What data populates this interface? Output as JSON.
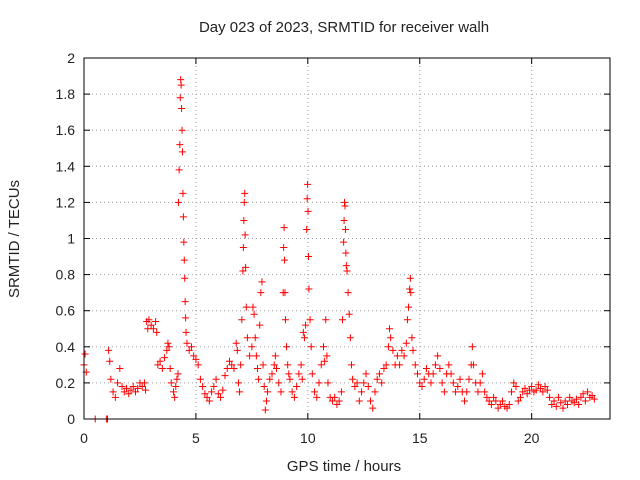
{
  "chart_data": {
    "type": "scatter",
    "title": "Day 023 of 2023, SRMTID for receiver walh",
    "xlabel": "GPS time / hours",
    "ylabel": "SRMTID / TECUs",
    "xlim": [
      0,
      23.5
    ],
    "ylim": [
      0,
      2
    ],
    "xticks": [
      0,
      5,
      10,
      15,
      20
    ],
    "yticks": [
      0,
      0.2,
      0.4,
      0.6,
      0.8,
      1,
      1.2,
      1.4,
      1.6,
      1.8,
      2
    ],
    "xtick_labels": [
      "0",
      "5",
      "10",
      "15",
      "20"
    ],
    "ytick_labels": [
      "0",
      "0.2",
      "0.4",
      "0.6",
      "0.8",
      "1",
      "1.2",
      "1.4",
      "1.6",
      "1.8",
      "2"
    ],
    "grid": true,
    "marker": "+",
    "color": "#ff0000",
    "series": [
      {
        "name": "SRMTID",
        "points": [
          [
            0.0,
            0.3
          ],
          [
            0.05,
            0.36
          ],
          [
            0.1,
            0.26
          ],
          [
            0.5,
            0.0
          ],
          [
            1.0,
            0.0
          ],
          [
            1.05,
            0.0
          ],
          [
            1.1,
            0.38
          ],
          [
            1.15,
            0.32
          ],
          [
            1.2,
            0.22
          ],
          [
            1.3,
            0.15
          ],
          [
            1.4,
            0.12
          ],
          [
            1.5,
            0.2
          ],
          [
            1.6,
            0.28
          ],
          [
            1.7,
            0.18
          ],
          [
            1.8,
            0.15
          ],
          [
            1.9,
            0.17
          ],
          [
            2.0,
            0.14
          ],
          [
            2.1,
            0.16
          ],
          [
            2.2,
            0.18
          ],
          [
            2.3,
            0.15
          ],
          [
            2.4,
            0.17
          ],
          [
            2.5,
            0.2
          ],
          [
            2.6,
            0.18
          ],
          [
            2.7,
            0.2
          ],
          [
            2.75,
            0.16
          ],
          [
            2.8,
            0.54
          ],
          [
            2.85,
            0.5
          ],
          [
            2.9,
            0.55
          ],
          [
            3.0,
            0.52
          ],
          [
            3.1,
            0.5
          ],
          [
            3.2,
            0.54
          ],
          [
            3.25,
            0.48
          ],
          [
            3.3,
            0.3
          ],
          [
            3.4,
            0.32
          ],
          [
            3.5,
            0.28
          ],
          [
            3.6,
            0.34
          ],
          [
            3.7,
            0.38
          ],
          [
            3.75,
            0.42
          ],
          [
            3.8,
            0.4
          ],
          [
            3.85,
            0.28
          ],
          [
            3.9,
            0.2
          ],
          [
            4.0,
            0.15
          ],
          [
            4.05,
            0.12
          ],
          [
            4.1,
            0.18
          ],
          [
            4.15,
            0.22
          ],
          [
            4.2,
            0.25
          ],
          [
            4.22,
            1.2
          ],
          [
            4.25,
            1.38
          ],
          [
            4.28,
            1.52
          ],
          [
            4.3,
            1.78
          ],
          [
            4.32,
            1.88
          ],
          [
            4.34,
            1.85
          ],
          [
            4.36,
            1.72
          ],
          [
            4.38,
            1.6
          ],
          [
            4.4,
            1.48
          ],
          [
            4.42,
            1.25
          ],
          [
            4.44,
            1.12
          ],
          [
            4.46,
            0.98
          ],
          [
            4.48,
            0.88
          ],
          [
            4.5,
            0.78
          ],
          [
            4.52,
            0.65
          ],
          [
            4.54,
            0.56
          ],
          [
            4.56,
            0.48
          ],
          [
            4.6,
            0.42
          ],
          [
            4.7,
            0.38
          ],
          [
            4.8,
            0.4
          ],
          [
            4.9,
            0.35
          ],
          [
            5.0,
            0.33
          ],
          [
            5.1,
            0.3
          ],
          [
            5.2,
            0.22
          ],
          [
            5.3,
            0.18
          ],
          [
            5.4,
            0.14
          ],
          [
            5.5,
            0.12
          ],
          [
            5.6,
            0.1
          ],
          [
            5.7,
            0.15
          ],
          [
            5.8,
            0.18
          ],
          [
            5.9,
            0.22
          ],
          [
            6.0,
            0.14
          ],
          [
            6.1,
            0.12
          ],
          [
            6.2,
            0.16
          ],
          [
            6.3,
            0.24
          ],
          [
            6.4,
            0.28
          ],
          [
            6.5,
            0.32
          ],
          [
            6.6,
            0.3
          ],
          [
            6.7,
            0.28
          ],
          [
            6.8,
            0.42
          ],
          [
            6.85,
            0.38
          ],
          [
            6.9,
            0.2
          ],
          [
            6.95,
            0.15
          ],
          [
            7.0,
            0.3
          ],
          [
            7.05,
            0.55
          ],
          [
            7.1,
            0.82
          ],
          [
            7.12,
            0.95
          ],
          [
            7.14,
            1.1
          ],
          [
            7.16,
            1.2
          ],
          [
            7.18,
            1.25
          ],
          [
            7.2,
            1.02
          ],
          [
            7.22,
            0.84
          ],
          [
            7.25,
            0.62
          ],
          [
            7.3,
            0.45
          ],
          [
            7.4,
            0.35
          ],
          [
            7.5,
            0.4
          ],
          [
            7.55,
            0.62
          ],
          [
            7.6,
            0.58
          ],
          [
            7.65,
            0.45
          ],
          [
            7.7,
            0.35
          ],
          [
            7.75,
            0.28
          ],
          [
            7.8,
            0.22
          ],
          [
            7.85,
            0.52
          ],
          [
            7.9,
            0.7
          ],
          [
            7.95,
            0.76
          ],
          [
            8.0,
            0.3
          ],
          [
            8.05,
            0.18
          ],
          [
            8.1,
            0.05
          ],
          [
            8.15,
            0.1
          ],
          [
            8.2,
            0.15
          ],
          [
            8.3,
            0.22
          ],
          [
            8.4,
            0.25
          ],
          [
            8.5,
            0.3
          ],
          [
            8.55,
            0.35
          ],
          [
            8.6,
            0.28
          ],
          [
            8.7,
            0.2
          ],
          [
            8.8,
            0.15
          ],
          [
            8.9,
            0.7
          ],
          [
            8.92,
            0.95
          ],
          [
            8.94,
            1.06
          ],
          [
            8.96,
            0.88
          ],
          [
            8.98,
            0.7
          ],
          [
            9.0,
            0.55
          ],
          [
            9.05,
            0.4
          ],
          [
            9.1,
            0.3
          ],
          [
            9.15,
            0.25
          ],
          [
            9.2,
            0.22
          ],
          [
            9.3,
            0.15
          ],
          [
            9.4,
            0.12
          ],
          [
            9.5,
            0.18
          ],
          [
            9.6,
            0.25
          ],
          [
            9.7,
            0.3
          ],
          [
            9.75,
            0.22
          ],
          [
            9.8,
            0.48
          ],
          [
            9.85,
            0.45
          ],
          [
            9.9,
            0.52
          ],
          [
            9.95,
            1.05
          ],
          [
            9.97,
            1.22
          ],
          [
            9.99,
            1.3
          ],
          [
            10.01,
            1.15
          ],
          [
            10.03,
            0.9
          ],
          [
            10.05,
            0.72
          ],
          [
            10.1,
            0.55
          ],
          [
            10.15,
            0.4
          ],
          [
            10.2,
            0.25
          ],
          [
            10.3,
            0.15
          ],
          [
            10.4,
            0.12
          ],
          [
            10.5,
            0.2
          ],
          [
            10.6,
            0.3
          ],
          [
            10.7,
            0.4
          ],
          [
            10.75,
            0.32
          ],
          [
            10.8,
            0.55
          ],
          [
            10.85,
            0.35
          ],
          [
            10.9,
            0.2
          ],
          [
            11.0,
            0.12
          ],
          [
            11.1,
            0.1
          ],
          [
            11.2,
            0.12
          ],
          [
            11.3,
            0.08
          ],
          [
            11.4,
            0.1
          ],
          [
            11.5,
            0.15
          ],
          [
            11.55,
            0.55
          ],
          [
            11.6,
            0.98
          ],
          [
            11.62,
            1.1
          ],
          [
            11.64,
            1.2
          ],
          [
            11.66,
            1.18
          ],
          [
            11.68,
            1.05
          ],
          [
            11.7,
            0.92
          ],
          [
            11.72,
            0.85
          ],
          [
            11.75,
            0.82
          ],
          [
            11.8,
            0.7
          ],
          [
            11.85,
            0.58
          ],
          [
            11.9,
            0.45
          ],
          [
            11.95,
            0.3
          ],
          [
            12.0,
            0.22
          ],
          [
            12.1,
            0.18
          ],
          [
            12.2,
            0.2
          ],
          [
            12.3,
            0.1
          ],
          [
            12.4,
            0.15
          ],
          [
            12.5,
            0.2
          ],
          [
            12.6,
            0.25
          ],
          [
            12.7,
            0.18
          ],
          [
            12.8,
            0.1
          ],
          [
            12.9,
            0.06
          ],
          [
            13.0,
            0.15
          ],
          [
            13.1,
            0.22
          ],
          [
            13.2,
            0.25
          ],
          [
            13.3,
            0.2
          ],
          [
            13.4,
            0.28
          ],
          [
            13.5,
            0.3
          ],
          [
            13.6,
            0.4
          ],
          [
            13.65,
            0.5
          ],
          [
            13.7,
            0.45
          ],
          [
            13.8,
            0.38
          ],
          [
            13.9,
            0.3
          ],
          [
            14.0,
            0.35
          ],
          [
            14.1,
            0.3
          ],
          [
            14.2,
            0.38
          ],
          [
            14.3,
            0.35
          ],
          [
            14.4,
            0.42
          ],
          [
            14.45,
            0.55
          ],
          [
            14.5,
            0.62
          ],
          [
            14.55,
            0.72
          ],
          [
            14.58,
            0.78
          ],
          [
            14.6,
            0.7
          ],
          [
            14.65,
            0.45
          ],
          [
            14.7,
            0.38
          ],
          [
            14.8,
            0.3
          ],
          [
            14.9,
            0.25
          ],
          [
            15.0,
            0.2
          ],
          [
            15.1,
            0.18
          ],
          [
            15.2,
            0.22
          ],
          [
            15.3,
            0.28
          ],
          [
            15.4,
            0.25
          ],
          [
            15.5,
            0.2
          ],
          [
            15.6,
            0.25
          ],
          [
            15.7,
            0.3
          ],
          [
            15.8,
            0.35
          ],
          [
            15.9,
            0.28
          ],
          [
            16.0,
            0.2
          ],
          [
            16.1,
            0.15
          ],
          [
            16.2,
            0.25
          ],
          [
            16.3,
            0.3
          ],
          [
            16.4,
            0.25
          ],
          [
            16.5,
            0.2
          ],
          [
            16.6,
            0.15
          ],
          [
            16.7,
            0.18
          ],
          [
            16.8,
            0.22
          ],
          [
            16.9,
            0.15
          ],
          [
            17.0,
            0.1
          ],
          [
            17.1,
            0.15
          ],
          [
            17.2,
            0.22
          ],
          [
            17.3,
            0.3
          ],
          [
            17.35,
            0.4
          ],
          [
            17.4,
            0.3
          ],
          [
            17.5,
            0.2
          ],
          [
            17.6,
            0.15
          ],
          [
            17.7,
            0.2
          ],
          [
            17.8,
            0.25
          ],
          [
            17.9,
            0.15
          ],
          [
            18.0,
            0.12
          ],
          [
            18.1,
            0.1
          ],
          [
            18.2,
            0.08
          ],
          [
            18.3,
            0.12
          ],
          [
            18.4,
            0.1
          ],
          [
            18.5,
            0.06
          ],
          [
            18.6,
            0.08
          ],
          [
            18.7,
            0.1
          ],
          [
            18.8,
            0.07
          ],
          [
            18.9,
            0.06
          ],
          [
            19.0,
            0.08
          ],
          [
            19.1,
            0.15
          ],
          [
            19.2,
            0.2
          ],
          [
            19.3,
            0.18
          ],
          [
            19.4,
            0.1
          ],
          [
            19.5,
            0.12
          ],
          [
            19.6,
            0.15
          ],
          [
            19.7,
            0.17
          ],
          [
            19.8,
            0.14
          ],
          [
            19.9,
            0.16
          ],
          [
            20.0,
            0.18
          ],
          [
            20.1,
            0.15
          ],
          [
            20.2,
            0.16
          ],
          [
            20.3,
            0.19
          ],
          [
            20.4,
            0.17
          ],
          [
            20.5,
            0.15
          ],
          [
            20.6,
            0.18
          ],
          [
            20.7,
            0.16
          ],
          [
            20.8,
            0.12
          ],
          [
            20.9,
            0.08
          ],
          [
            21.0,
            0.1
          ],
          [
            21.1,
            0.07
          ],
          [
            21.2,
            0.12
          ],
          [
            21.3,
            0.09
          ],
          [
            21.4,
            0.06
          ],
          [
            21.5,
            0.1
          ],
          [
            21.6,
            0.08
          ],
          [
            21.7,
            0.12
          ],
          [
            21.8,
            0.1
          ],
          [
            21.9,
            0.09
          ],
          [
            22.0,
            0.11
          ],
          [
            22.1,
            0.08
          ],
          [
            22.2,
            0.12
          ],
          [
            22.3,
            0.14
          ],
          [
            22.4,
            0.1
          ],
          [
            22.5,
            0.15
          ],
          [
            22.6,
            0.12
          ],
          [
            22.7,
            0.13
          ],
          [
            22.8,
            0.11
          ]
        ]
      }
    ]
  }
}
